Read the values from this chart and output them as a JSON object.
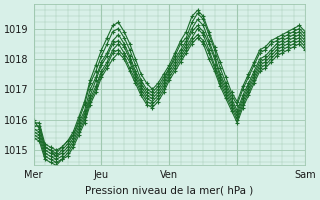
{
  "title": "",
  "xlabel": "Pression niveau de la mer( hPa )",
  "ylabel": "",
  "bg_color": "#d8f0e8",
  "grid_color": "#a0c8b0",
  "line_color": "#1a6b2a",
  "marker_color": "#1a6b2a",
  "ylim": [
    1014.5,
    1019.8
  ],
  "xlim": [
    0,
    96
  ],
  "xtick_positions": [
    0,
    24,
    48,
    72,
    96
  ],
  "xticklabels": [
    "Mer",
    "Jeu",
    "Ven",
    "Sam"
  ],
  "xtick_label_positions": [
    0,
    24,
    48,
    72
  ],
  "yticks": [
    1015,
    1016,
    1017,
    1018,
    1019
  ],
  "series": [
    [
      1015.9,
      1015.9,
      1015.2,
      1015.1,
      1015.0,
      1015.1,
      1015.3,
      1015.5,
      1016.0,
      1016.5,
      1017.2,
      1017.6,
      1018.1,
      1018.5,
      1018.9,
      1019.0,
      1018.7,
      1018.3,
      1017.8,
      1017.3,
      1017.0,
      1016.9,
      1017.1,
      1017.4,
      1017.7,
      1018.1,
      1018.5,
      1018.7,
      1019.2,
      1019.5,
      1019.3,
      1018.8,
      1018.3,
      1017.7,
      1017.2,
      1016.8,
      1016.5,
      1017.0,
      1017.4,
      1017.8,
      1018.2,
      1018.3,
      1018.5,
      1018.6,
      1018.7,
      1018.8,
      1018.9,
      1019.0,
      1018.8
    ],
    [
      1015.8,
      1015.8,
      1015.1,
      1015.0,
      1014.8,
      1015.0,
      1015.2,
      1015.5,
      1015.9,
      1016.3,
      1017.0,
      1017.4,
      1017.9,
      1018.2,
      1018.6,
      1018.8,
      1018.5,
      1018.1,
      1017.6,
      1017.2,
      1016.9,
      1016.8,
      1017.0,
      1017.3,
      1017.7,
      1018.0,
      1018.3,
      1018.6,
      1019.0,
      1019.3,
      1019.1,
      1018.6,
      1018.1,
      1017.5,
      1017.1,
      1016.7,
      1016.3,
      1016.8,
      1017.2,
      1017.6,
      1018.0,
      1018.1,
      1018.3,
      1018.5,
      1018.6,
      1018.7,
      1018.8,
      1018.9,
      1018.7
    ],
    [
      1015.7,
      1015.6,
      1015.0,
      1014.9,
      1014.8,
      1014.9,
      1015.1,
      1015.4,
      1015.8,
      1016.2,
      1016.8,
      1017.3,
      1017.8,
      1018.1,
      1018.5,
      1018.6,
      1018.4,
      1018.0,
      1017.5,
      1017.1,
      1016.8,
      1016.7,
      1016.9,
      1017.2,
      1017.6,
      1017.9,
      1018.2,
      1018.5,
      1018.9,
      1019.1,
      1018.9,
      1018.5,
      1018.0,
      1017.4,
      1017.0,
      1016.6,
      1016.2,
      1016.7,
      1017.1,
      1017.5,
      1017.9,
      1018.0,
      1018.2,
      1018.4,
      1018.5,
      1018.6,
      1018.7,
      1018.8,
      1018.6
    ],
    [
      1015.6,
      1015.5,
      1014.9,
      1014.8,
      1014.7,
      1014.8,
      1015.0,
      1015.3,
      1015.7,
      1016.1,
      1016.7,
      1017.1,
      1017.6,
      1017.9,
      1018.3,
      1018.5,
      1018.2,
      1017.9,
      1017.4,
      1017.0,
      1016.7,
      1016.6,
      1016.8,
      1017.1,
      1017.5,
      1017.8,
      1018.1,
      1018.4,
      1018.7,
      1019.0,
      1018.8,
      1018.3,
      1017.8,
      1017.3,
      1016.9,
      1016.5,
      1016.1,
      1016.6,
      1017.0,
      1017.4,
      1017.8,
      1017.9,
      1018.1,
      1018.3,
      1018.4,
      1018.5,
      1018.6,
      1018.7,
      1018.5
    ],
    [
      1015.5,
      1015.4,
      1014.8,
      1014.7,
      1014.6,
      1014.7,
      1014.9,
      1015.2,
      1015.6,
      1016.0,
      1016.6,
      1017.0,
      1017.5,
      1017.8,
      1018.2,
      1018.3,
      1018.1,
      1017.7,
      1017.3,
      1016.9,
      1016.6,
      1016.5,
      1016.7,
      1017.0,
      1017.4,
      1017.7,
      1018.0,
      1018.3,
      1018.6,
      1018.8,
      1018.6,
      1018.2,
      1017.7,
      1017.2,
      1016.8,
      1016.4,
      1016.0,
      1016.5,
      1016.9,
      1017.3,
      1017.7,
      1017.8,
      1018.0,
      1018.2,
      1018.3,
      1018.4,
      1018.5,
      1018.6,
      1018.4
    ],
    [
      1015.4,
      1015.3,
      1014.7,
      1014.6,
      1014.5,
      1014.7,
      1014.8,
      1015.1,
      1015.5,
      1015.9,
      1016.5,
      1016.9,
      1017.4,
      1017.7,
      1018.0,
      1018.2,
      1018.0,
      1017.6,
      1017.2,
      1016.8,
      1016.5,
      1016.4,
      1016.6,
      1016.9,
      1017.3,
      1017.6,
      1017.9,
      1018.2,
      1018.5,
      1018.7,
      1018.5,
      1018.0,
      1017.6,
      1017.1,
      1016.7,
      1016.3,
      1015.9,
      1016.4,
      1016.8,
      1017.2,
      1017.6,
      1017.7,
      1017.9,
      1018.1,
      1018.2,
      1018.3,
      1018.4,
      1018.5,
      1018.3
    ],
    [
      1016.0,
      1015.7,
      1015.1,
      1015.0,
      1014.9,
      1015.1,
      1015.3,
      1015.6,
      1016.1,
      1016.6,
      1017.3,
      1017.8,
      1018.3,
      1018.7,
      1019.1,
      1019.2,
      1018.9,
      1018.5,
      1018.0,
      1017.5,
      1017.2,
      1017.0,
      1017.2,
      1017.5,
      1017.8,
      1018.2,
      1018.6,
      1018.9,
      1019.4,
      1019.6,
      1019.4,
      1018.9,
      1018.4,
      1017.9,
      1017.4,
      1016.9,
      1016.6,
      1017.1,
      1017.5,
      1017.9,
      1018.3,
      1018.4,
      1018.6,
      1018.7,
      1018.8,
      1018.9,
      1019.0,
      1019.1,
      1018.9
    ]
  ],
  "n_points": 49,
  "time_hours": 96
}
